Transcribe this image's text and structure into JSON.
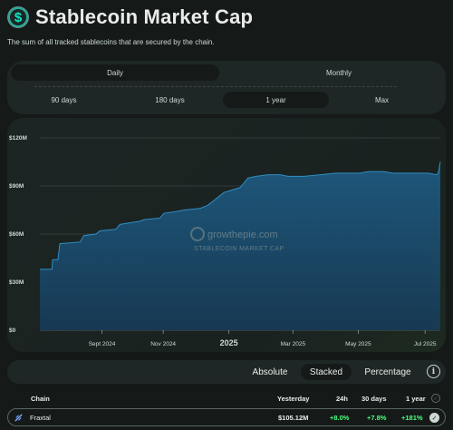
{
  "header": {
    "title": "Stablecoin Market Cap",
    "subtitle": "The sum of all tracked stablecoins that are secured by the chain."
  },
  "granularity_tabs": [
    {
      "label": "Daily",
      "active": true
    },
    {
      "label": "Monthly",
      "active": false
    }
  ],
  "range_tabs": [
    {
      "label": "90 days",
      "active": false
    },
    {
      "label": "180 days",
      "active": false
    },
    {
      "label": "1 year",
      "active": true
    },
    {
      "label": "Max",
      "active": false
    }
  ],
  "watermark": {
    "brand": "growthepie.com",
    "label": "STABLECOIN MARKET CAP"
  },
  "chart_data": {
    "type": "area",
    "y_ticks": [
      "$0",
      "$30M",
      "$60M",
      "$90M",
      "$120M"
    ],
    "ylim": [
      0,
      120
    ],
    "x_ticks": [
      {
        "label": "Sept 2024",
        "t": 0.155,
        "bold": false
      },
      {
        "label": "Nov 2024",
        "t": 0.308,
        "bold": false
      },
      {
        "label": "2025",
        "t": 0.472,
        "bold": true
      },
      {
        "label": "Mar 2025",
        "t": 0.632,
        "bold": false
      },
      {
        "label": "May 2025",
        "t": 0.795,
        "bold": false
      },
      {
        "label": "Jul 2025",
        "t": 0.962,
        "bold": false
      }
    ],
    "x": [
      0,
      0.03,
      0.032,
      0.045,
      0.05,
      0.1,
      0.11,
      0.14,
      0.15,
      0.19,
      0.2,
      0.25,
      0.26,
      0.3,
      0.31,
      0.34,
      0.36,
      0.4,
      0.42,
      0.44,
      0.46,
      0.5,
      0.52,
      0.54,
      0.57,
      0.6,
      0.62,
      0.66,
      0.7,
      0.74,
      0.78,
      0.8,
      0.82,
      0.86,
      0.88,
      0.9,
      0.94,
      0.97,
      0.99,
      0.995,
      1
    ],
    "values": [
      38,
      38,
      44,
      44,
      54,
      55,
      59,
      60,
      62,
      63,
      66,
      68,
      69,
      70,
      73,
      74,
      75,
      76,
      78,
      82,
      86,
      89,
      95,
      96,
      97,
      97,
      96,
      96,
      97,
      98,
      98,
      98,
      99,
      99,
      98,
      98,
      98,
      98,
      97,
      98,
      105
    ]
  },
  "display_modes": [
    {
      "label": "Absolute",
      "active": false
    },
    {
      "label": "Stacked",
      "active": true
    },
    {
      "label": "Percentage",
      "active": false
    }
  ],
  "table": {
    "columns": [
      "Chain",
      "Yesterday",
      "24h",
      "30 days",
      "1 year"
    ],
    "rows": [
      {
        "chain": "Fraxtal",
        "yesterday": "$105.12M",
        "d24h": "+8.0%",
        "d30": "+7.8%",
        "y1": "+181%"
      }
    ]
  },
  "colors": {
    "accent": "#10e3c4",
    "positive": "#4cff7e",
    "area": "#1e5a80"
  }
}
